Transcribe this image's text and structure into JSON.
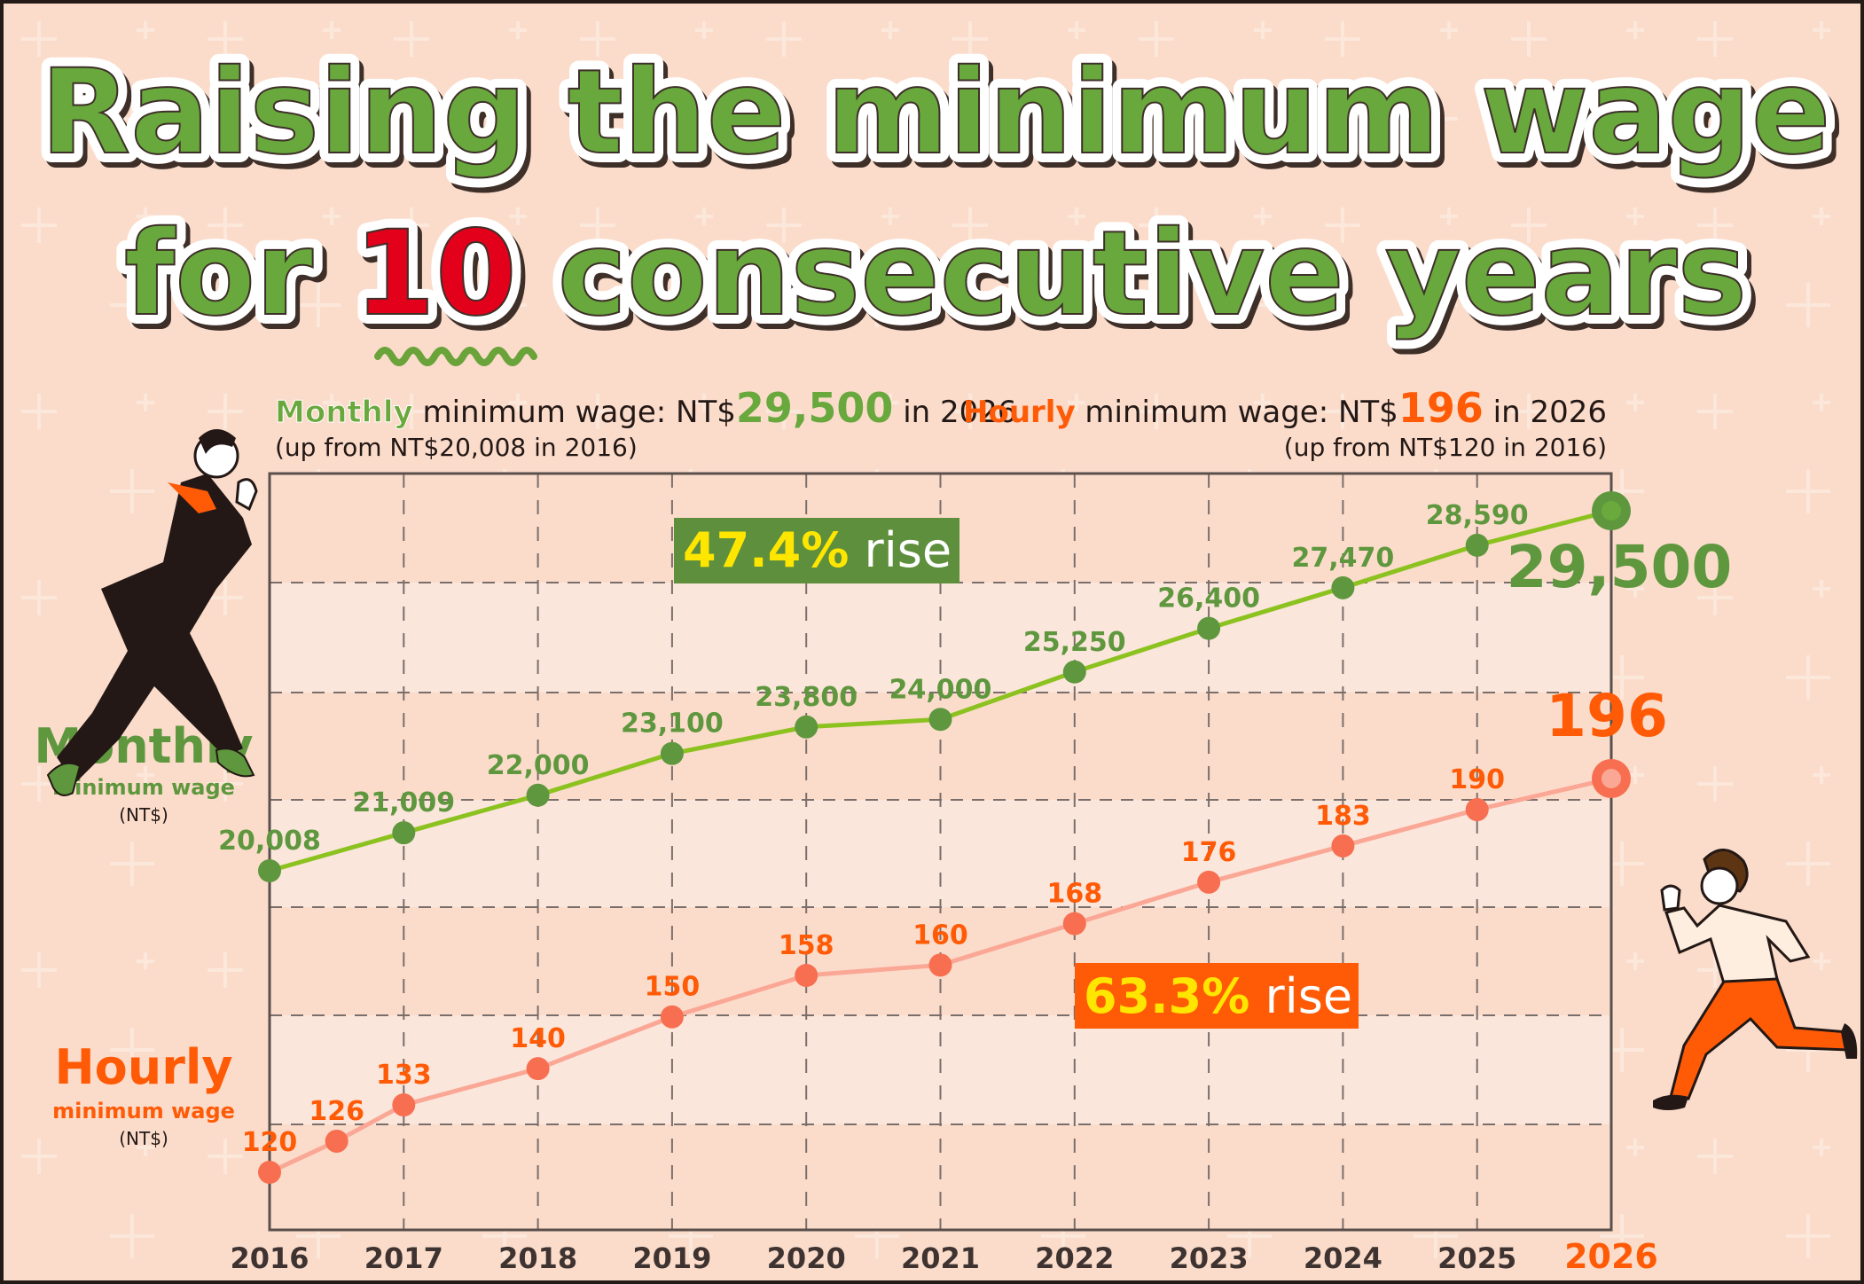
{
  "header": {
    "title_line1": "Raising the minimum wage",
    "title_line2_prefix": "for ",
    "title_line2_highlight": "10",
    "title_line2_suffix": " consecutive years"
  },
  "summary": {
    "monthly": {
      "label": "Monthly",
      "text_before": " minimum wage: NT$",
      "value": "29,500",
      "text_after": " in 2026",
      "note": "(up from NT$20,008 in 2016)"
    },
    "hourly": {
      "label": "Hourly",
      "text_before": " minimum wage: NT$",
      "value": "196",
      "text_after": " in 2026",
      "note": "(up from NT$120 in 2016)"
    }
  },
  "side_labels": {
    "monthly": {
      "title": "Monthly",
      "subtitle": "minimum wage",
      "unit": "(NT$)"
    },
    "hourly": {
      "title": "Hourly",
      "subtitle": "minimum wage",
      "unit": "(NT$)"
    }
  },
  "badges": {
    "monthly": {
      "percent": "47.4%",
      "word": " rise"
    },
    "hourly": {
      "percent": "63.3%",
      "word": " rise"
    }
  },
  "colors": {
    "background": "#fbdccb",
    "monthly_primary": "#5e973d",
    "monthly_line": "#8cc21f",
    "hourly_primary": "#ff5a06",
    "hourly_point": "#f76f50",
    "hourly_line": "#fba795",
    "badge_highlight": "#ffe600",
    "axis_text": "#3e3330"
  },
  "chart_data": {
    "type": "line",
    "title": "Raising the minimum wage for 10 consecutive years",
    "xlabel": "",
    "ylabel": "",
    "x_ticks": [
      "2016",
      "2017",
      "2018",
      "2019",
      "2020",
      "2021",
      "2022",
      "2023",
      "2024",
      "2025",
      "2026"
    ],
    "highlight_tick": "2026",
    "grid": true,
    "series": [
      {
        "name": "Monthly minimum wage (NT$)",
        "x": [
          2016,
          2017,
          2018,
          2019,
          2020,
          2021,
          2022,
          2023,
          2024,
          2025,
          2026
        ],
        "values": [
          20008,
          21009,
          22000,
          23100,
          23800,
          24000,
          25250,
          26400,
          27470,
          28590,
          29500
        ],
        "labels": [
          "20,008",
          "21,009",
          "22,000",
          "23,100",
          "23,800",
          "24,000",
          "25,250",
          "26,400",
          "27,470",
          "28,590",
          "29,500"
        ],
        "rise": "47.4%"
      },
      {
        "name": "Hourly minimum wage (NT$)",
        "x": [
          2016,
          2016.5,
          2017,
          2018,
          2019,
          2020,
          2021,
          2022,
          2023,
          2024,
          2025,
          2026
        ],
        "values": [
          120,
          126,
          133,
          140,
          150,
          158,
          160,
          168,
          176,
          183,
          190,
          196
        ],
        "labels": [
          "120",
          "126",
          "133",
          "140",
          "150",
          "158",
          "160",
          "168",
          "176",
          "183",
          "190",
          "196"
        ],
        "rise": "63.3%"
      }
    ]
  }
}
